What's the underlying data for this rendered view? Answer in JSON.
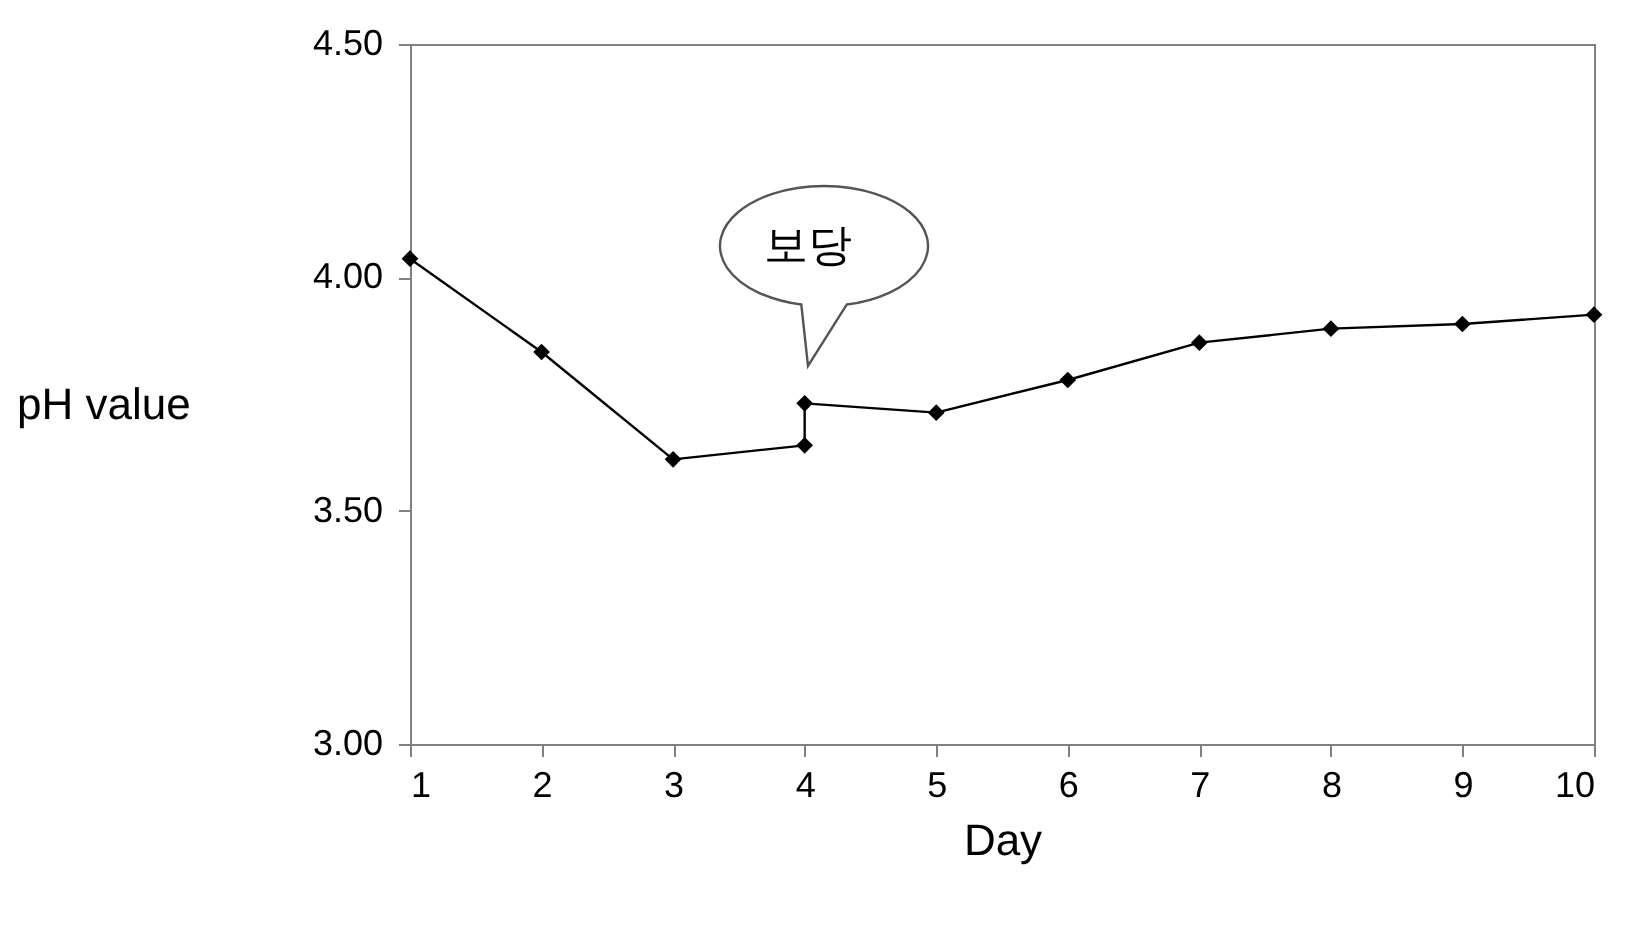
{
  "chart_data": {
    "type": "line",
    "xlabel": "Day",
    "ylabel": "pH value",
    "x": [
      1,
      2,
      3,
      4,
      4,
      5,
      6,
      7,
      8,
      9,
      10
    ],
    "series": [
      {
        "color": "#000000",
        "values": [
          4.04,
          3.84,
          3.61,
          3.64,
          3.73,
          3.71,
          3.78,
          3.86,
          3.89,
          3.9,
          3.92
        ]
      }
    ],
    "xlim": [
      1,
      10
    ],
    "xticks": [
      1,
      2,
      3,
      4,
      5,
      6,
      7,
      8,
      9,
      10
    ],
    "ylim": [
      3,
      4.5
    ],
    "yticks": [
      {
        "value": 3,
        "label": "3.00"
      },
      {
        "value": 3.5,
        "label": "3.50"
      },
      {
        "value": 4,
        "label": "4.00"
      },
      {
        "value": 4.5,
        "label": "4.50"
      }
    ],
    "annotations": [
      "보당"
    ],
    "marker": "diamond",
    "line_style": "solid",
    "grid": false
  }
}
